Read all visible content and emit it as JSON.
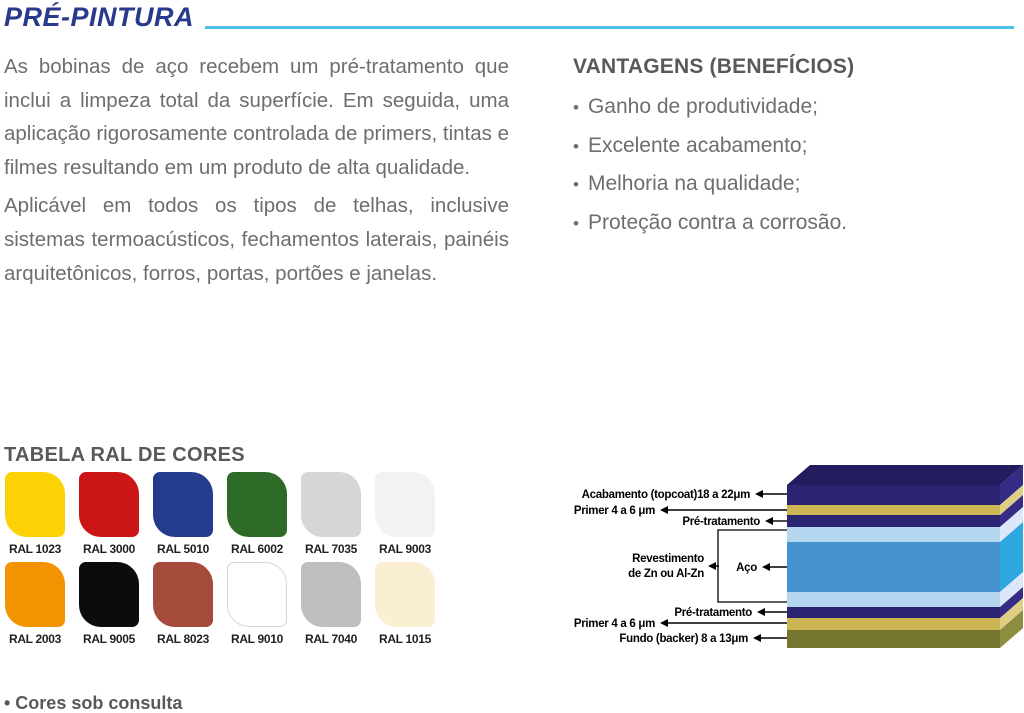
{
  "page": {
    "title": "PRÉ-PINTURA"
  },
  "intro": {
    "paragraph1": "As bobinas de aço recebem um pré-tratamento que inclui a limpeza total da superfície. Em seguida, uma aplicação rigorosamente controlada de primers, tintas e filmes resultando em um produto de alta qualidade.",
    "paragraph2": "Aplicável em todos os tipos de telhas, inclusive sistemas termoacústicos, fechamentos laterais, painéis arquitetônicos, forros, portas, portões e janelas."
  },
  "vantagens": {
    "heading": "VANTAGENS (BENEFÍCIOS)",
    "bullet": "•",
    "items": [
      "Ganho de produtividade;",
      "Excelente acabamento;",
      "Melhoria na qualidade;",
      "Proteção contra a corrosão."
    ]
  },
  "ral": {
    "heading": "TABELA RAL DE CORES",
    "footnote": "• Cores sob consulta",
    "swatches": [
      {
        "code": "RAL 1023",
        "color": "#FDD205"
      },
      {
        "code": "RAL 3000",
        "color": "#CB1517"
      },
      {
        "code": "RAL 5010",
        "color": "#243C8B"
      },
      {
        "code": "RAL 6002",
        "color": "#2E6B28"
      },
      {
        "code": "RAL 7035",
        "color": "#D5D7D6"
      },
      {
        "code": "RAL 9003",
        "color": "#F2F3F1"
      },
      {
        "code": "RAL 2003",
        "color": "#F39301"
      },
      {
        "code": "RAL 9005",
        "color": "#0C0C0C"
      },
      {
        "code": "RAL 8023",
        "color": "#A54B3B"
      },
      {
        "code": "RAL 9010",
        "color": "#FFFFFF",
        "border": "#D6D6D6"
      },
      {
        "code": "RAL 7040",
        "color": "#BCBEC0"
      },
      {
        "code": "RAL 1015",
        "color": "#FAEFD2"
      }
    ]
  },
  "diagram": {
    "top_face_color": "#231C5F",
    "layers": [
      {
        "name": "Acabamento (topcoat)",
        "front": "#2B2473",
        "side": "#352C86",
        "h": 20
      },
      {
        "name": "Primer",
        "front": "#CCB654",
        "side": "#DECF85",
        "h": 10
      },
      {
        "name": "Pré-tratamento",
        "front": "#2B2473",
        "side": "#352C86",
        "h": 12
      },
      {
        "name": "Revestimento de Zn ou Al-Zn",
        "front": "#B4D7EF",
        "side": "#DCE8F8",
        "h": 15
      },
      {
        "name": "Aço",
        "front": "#4793CF",
        "side": "#2EA7E0",
        "h": 50
      },
      {
        "name": "Revestimento de Zn ou Al-Zn",
        "front": "#B4D7EF",
        "side": "#DCE8F8",
        "h": 15
      },
      {
        "name": "Pré-tratamento",
        "front": "#2B2473",
        "side": "#352C86",
        "h": 11
      },
      {
        "name": "Primer",
        "front": "#CCB654",
        "side": "#DECF85",
        "h": 12
      },
      {
        "name": "Fundo (backer)",
        "front": "#74752F",
        "side": "#8C8D3F",
        "h": 18
      }
    ],
    "labels": {
      "topcoat": "Acabamento (topcoat)18 a 22μm",
      "primer_top": "Primer 4 a 6 μm",
      "pretreat_top": "Pré-tratamento",
      "revestimento_line1": "Revestimento",
      "revestimento_line2": "de Zn ou Al-Zn",
      "aco": "Aço",
      "pretreat_bottom": "Pré-tratamento",
      "primer_bottom": "Primer 4 a 6 μm",
      "backer": "Fundo (backer) 8 a 13μm"
    }
  },
  "colors": {
    "title": "#293A8C",
    "rule": "#4EC0E8",
    "heading": "#58595B",
    "body": "#6D6E71",
    "label": "#231F20"
  }
}
